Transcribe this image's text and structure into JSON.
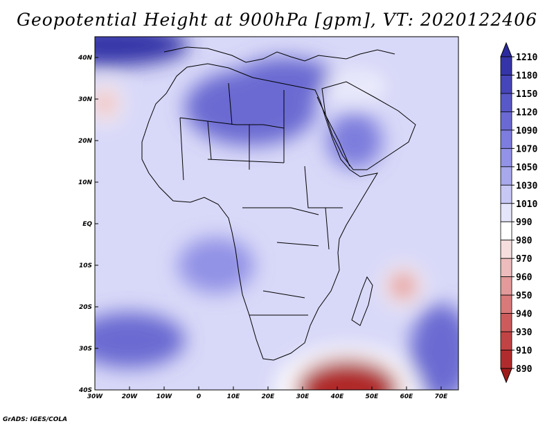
{
  "title": "Geopotential Height at 900hPa [gpm], VT: 2020122406",
  "footer": "GrADS: IGES/COLA",
  "map": {
    "variable": "Geopotential Height",
    "level": "900hPa",
    "units": "gpm",
    "valid_time": "2020122406",
    "lon_range": [
      -30,
      75
    ],
    "lat_range": [
      -40,
      45
    ],
    "lat_ticks": [
      {
        "label": "40N",
        "value": 40
      },
      {
        "label": "30N",
        "value": 30
      },
      {
        "label": "20N",
        "value": 20
      },
      {
        "label": "10N",
        "value": 10
      },
      {
        "label": "EQ",
        "value": 0
      },
      {
        "label": "10S",
        "value": -10
      },
      {
        "label": "20S",
        "value": -20
      },
      {
        "label": "30S",
        "value": -30
      },
      {
        "label": "40S",
        "value": -40
      }
    ],
    "lon_ticks": [
      {
        "label": "30W",
        "value": -30
      },
      {
        "label": "20W",
        "value": -20
      },
      {
        "label": "10W",
        "value": -10
      },
      {
        "label": "0",
        "value": 0
      },
      {
        "label": "10E",
        "value": 10
      },
      {
        "label": "20E",
        "value": 20
      },
      {
        "label": "30E",
        "value": 30
      },
      {
        "label": "40E",
        "value": 40
      },
      {
        "label": "50E",
        "value": 50
      },
      {
        "label": "60E",
        "value": 60
      },
      {
        "label": "70E",
        "value": 70
      }
    ]
  },
  "colorbar": {
    "labels": [
      "1210",
      "1180",
      "1150",
      "1120",
      "1090",
      "1070",
      "1050",
      "1030",
      "1010",
      "990",
      "980",
      "970",
      "960",
      "950",
      "940",
      "930",
      "910",
      "890"
    ],
    "colors": [
      "#2b2b9e",
      "#3535a8",
      "#4646b8",
      "#5858c6",
      "#6a6ad2",
      "#7d7ddd",
      "#9292e6",
      "#a8a8ee",
      "#c8c8f6",
      "#e4e4fb",
      "#ffffff",
      "#f6dede",
      "#eebcbc",
      "#e49a9a",
      "#d87a7a",
      "#cc5c5c",
      "#c04444",
      "#b02c2c",
      "#a01c1c"
    ]
  },
  "features": {
    "highs": [
      {
        "lon": -25,
        "lat": 43,
        "value": 1200
      },
      {
        "lon": 15,
        "lat": 28,
        "value": 1110
      },
      {
        "lon": 25,
        "lat": 35,
        "value": 1100
      },
      {
        "lon": -20,
        "lat": -28,
        "value": 1100
      },
      {
        "lon": 70,
        "lat": -31,
        "value": 1100
      },
      {
        "lon": 45,
        "lat": 20,
        "value": 1070
      },
      {
        "lon": 5,
        "lat": -10,
        "value": 1050
      }
    ],
    "lows": [
      {
        "lon": 43,
        "lat": -40,
        "value": 900
      },
      {
        "lon": 59,
        "lat": -15,
        "value": 955
      },
      {
        "lon": -27,
        "lat": 29,
        "value": 965
      },
      {
        "lon": 45,
        "lat": 33,
        "value": 990
      }
    ]
  }
}
